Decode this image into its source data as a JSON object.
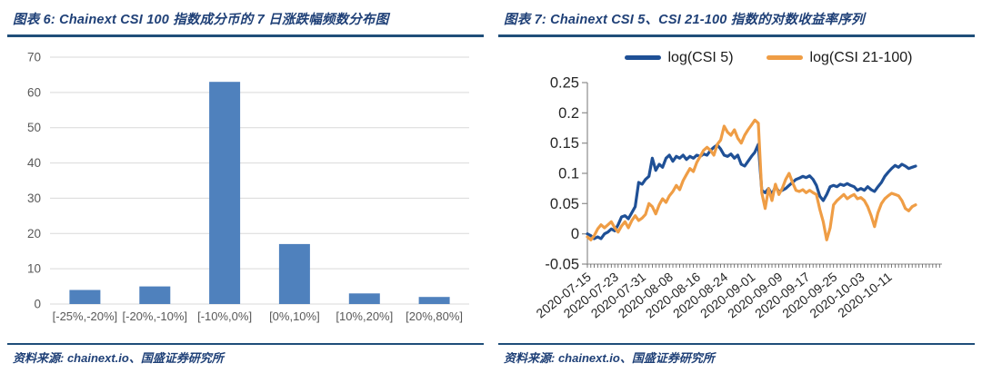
{
  "accent_color": "#1f4e79",
  "panels": {
    "left": {
      "title": "图表 6: Chainext CSI 100 指数成分币的 7 日涨跌幅频数分布图",
      "source": "资料来源: chainext.io、国盛证券研究所"
    },
    "right": {
      "title": "图表 7: Chainext CSI 5、CSI 21-100 指数的对数收益率序列",
      "source": "资料来源: chainext.io、国盛证券研究所"
    }
  },
  "chart_data": [
    {
      "type": "bar",
      "title": "Chainext CSI 100 指数成分币的 7 日涨跌幅频数分布图",
      "categories": [
        "[-25%,-20%]",
        "[-20%,-10%]",
        "[-10%,0%]",
        "[0%,10%]",
        "[10%,20%]",
        "[20%,80%]"
      ],
      "values": [
        4,
        5,
        63,
        17,
        3,
        2
      ],
      "xlabel": "",
      "ylabel": "",
      "ylim": [
        0,
        70
      ],
      "ytick_step": 10,
      "grid": true,
      "bar_color": "#4f81bd",
      "gridline_color": "#d9d9d9",
      "tick_label_color": "#595959"
    },
    {
      "type": "line",
      "title": "Chainext CSI 5、CSI 21-100 指数的对数收益率序列",
      "start_date": "2020-07-15",
      "x_unit": "day",
      "xtick_interval_days": 8,
      "xtick_labels": [
        "2020-07-15",
        "2020-07-23",
        "2020-07-31",
        "2020-08-08",
        "2020-08-16",
        "2020-08-24",
        "2020-09-01",
        "2020-09-09",
        "2020-09-17",
        "2020-09-25",
        "2020-10-03",
        "2020-10-11"
      ],
      "ylim": [
        -0.05,
        0.25
      ],
      "ytick_step": 0.05,
      "ytick_labels": [
        "-0.05",
        "0",
        "0.05",
        "0.1",
        "0.15",
        "0.2",
        "0.25"
      ],
      "grid": false,
      "legend_position": "top",
      "axis_color": "#8c8c8c",
      "tick_color": "#595959",
      "tick_label_color": "#262626",
      "series": [
        {
          "name": "log(CSI 5)",
          "color": "#1f5096",
          "values": [
            0.0,
            -0.003,
            -0.008,
            -0.005,
            -0.008,
            0.0,
            0.003,
            0.008,
            0.005,
            0.015,
            0.028,
            0.03,
            0.025,
            0.035,
            0.045,
            0.085,
            0.082,
            0.09,
            0.095,
            0.125,
            0.105,
            0.115,
            0.11,
            0.125,
            0.13,
            0.12,
            0.128,
            0.125,
            0.13,
            0.123,
            0.128,
            0.125,
            0.13,
            0.128,
            0.132,
            0.13,
            0.138,
            0.143,
            0.147,
            0.14,
            0.13,
            0.128,
            0.132,
            0.125,
            0.13,
            0.115,
            0.112,
            0.12,
            0.128,
            0.135,
            0.148,
            0.072,
            0.068,
            0.075,
            0.065,
            0.078,
            0.07,
            0.072,
            0.075,
            0.08,
            0.085,
            0.09,
            0.092,
            0.095,
            0.093,
            0.096,
            0.09,
            0.08,
            0.062,
            0.055,
            0.065,
            0.078,
            0.08,
            0.078,
            0.082,
            0.08,
            0.083,
            0.08,
            0.078,
            0.072,
            0.075,
            0.072,
            0.078,
            0.073,
            0.07,
            0.078,
            0.085,
            0.095,
            0.102,
            0.108,
            0.113,
            0.11,
            0.115,
            0.112,
            0.108,
            0.11,
            0.112
          ]
        },
        {
          "name": "log(CSI 21-100)",
          "color": "#ef9d45",
          "values": [
            -0.005,
            -0.01,
            -0.003,
            0.008,
            0.015,
            0.01,
            0.015,
            0.02,
            0.01,
            0.003,
            0.013,
            0.02,
            0.01,
            0.022,
            0.03,
            0.022,
            0.026,
            0.032,
            0.05,
            0.045,
            0.033,
            0.048,
            0.058,
            0.052,
            0.063,
            0.07,
            0.08,
            0.073,
            0.088,
            0.098,
            0.108,
            0.103,
            0.118,
            0.128,
            0.138,
            0.143,
            0.138,
            0.13,
            0.148,
            0.155,
            0.178,
            0.168,
            0.163,
            0.172,
            0.158,
            0.15,
            0.163,
            0.172,
            0.18,
            0.188,
            0.183,
            0.068,
            0.042,
            0.075,
            0.055,
            0.082,
            0.065,
            0.075,
            0.09,
            0.1,
            0.085,
            0.072,
            0.07,
            0.073,
            0.068,
            0.072,
            0.068,
            0.065,
            0.04,
            0.02,
            -0.01,
            0.01,
            0.048,
            0.055,
            0.06,
            0.065,
            0.058,
            0.062,
            0.065,
            0.058,
            0.06,
            0.055,
            0.045,
            0.03,
            0.012,
            0.035,
            0.05,
            0.058,
            0.063,
            0.067,
            0.065,
            0.063,
            0.055,
            0.042,
            0.038,
            0.045,
            0.048
          ]
        }
      ]
    }
  ]
}
